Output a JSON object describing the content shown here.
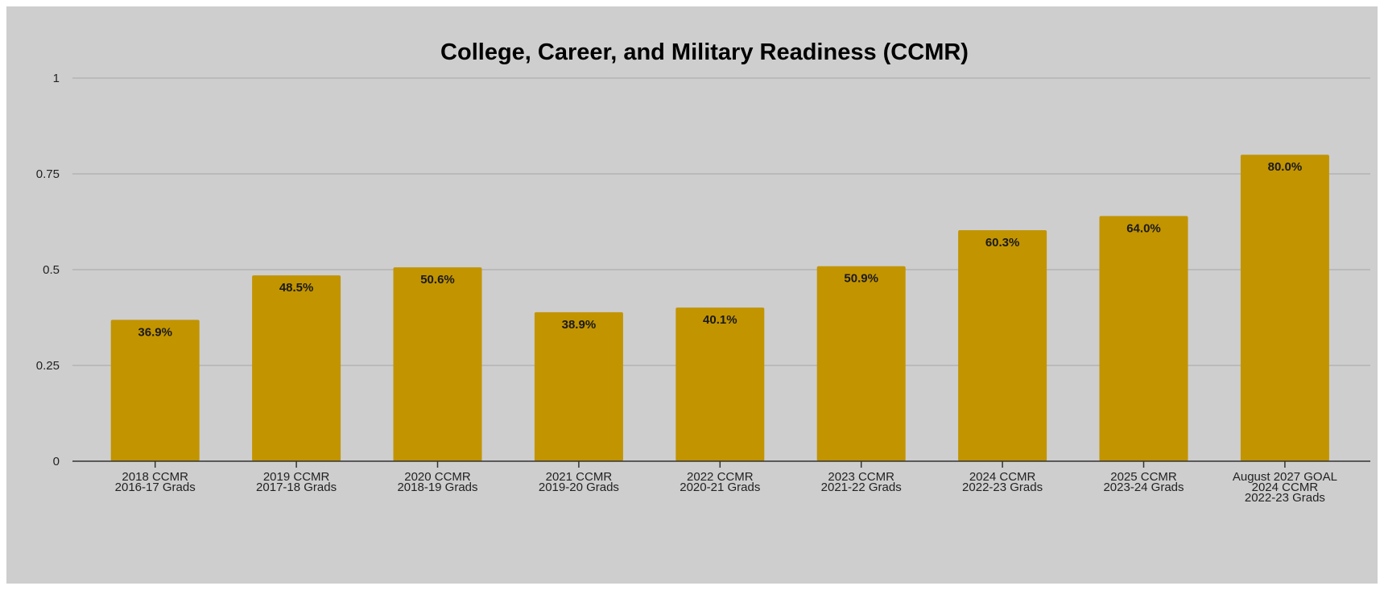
{
  "chart_data": {
    "type": "bar",
    "title": "College, Career, and Military Readiness (CCMR)",
    "xlabel": "",
    "ylabel": "",
    "ylim": [
      0,
      1
    ],
    "yticks": [
      {
        "value": 0,
        "label": "0"
      },
      {
        "value": 0.25,
        "label": "0.25"
      },
      {
        "value": 0.5,
        "label": "0.5"
      },
      {
        "value": 0.75,
        "label": "0.75"
      },
      {
        "value": 1,
        "label": "1"
      }
    ],
    "grid": true,
    "legend": "none",
    "bar_color": "#c29400",
    "categories": [
      [
        "2018 CCMR",
        "2016-17 Grads"
      ],
      [
        "2019 CCMR",
        "2017-18 Grads"
      ],
      [
        "2020 CCMR",
        "2018-19 Grads"
      ],
      [
        "2021 CCMR",
        "2019-20 Grads"
      ],
      [
        "2022 CCMR",
        "2020-21 Grads"
      ],
      [
        "2023 CCMR",
        "2021-22 Grads"
      ],
      [
        "2024 CCMR",
        "2022-23 Grads"
      ],
      [
        "2025 CCMR",
        "2023-24 Grads"
      ],
      [
        "August 2027 GOAL",
        "2024 CCMR",
        "2022-23 Grads"
      ]
    ],
    "values": [
      0.369,
      0.485,
      0.506,
      0.389,
      0.401,
      0.509,
      0.603,
      0.64,
      0.8
    ],
    "data_labels": [
      "36.9%",
      "48.5%",
      "50.6%",
      "38.9%",
      "40.1%",
      "50.9%",
      "60.3%",
      "64.0%",
      "80.0%"
    ]
  }
}
